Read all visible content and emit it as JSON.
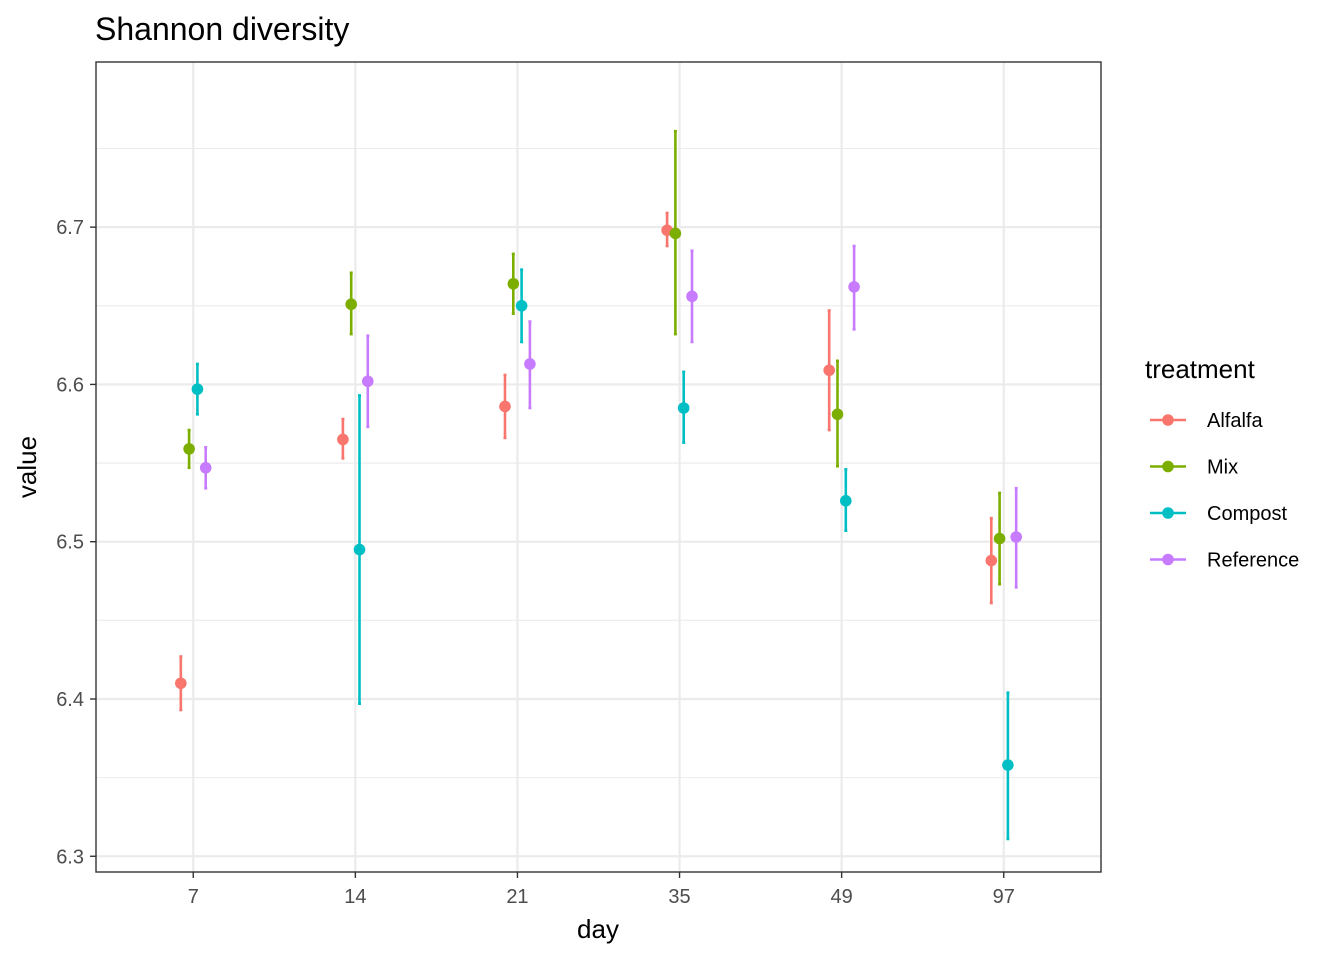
{
  "chart_data": {
    "type": "scatter",
    "title": "Shannon diversity",
    "xlabel": "day",
    "ylabel": "value",
    "categories": [
      "7",
      "14",
      "21",
      "35",
      "49",
      "97"
    ],
    "ylim": [
      6.29,
      6.805
    ],
    "yticks": [
      "6.3",
      "6.4",
      "6.5",
      "6.6",
      "6.7"
    ],
    "grid": true,
    "legend": {
      "title": "treatment",
      "placement": "right"
    },
    "series": [
      {
        "name": "Alfalfa",
        "color": "#F8766D",
        "values": [
          6.41,
          6.565,
          6.586,
          6.698,
          6.609,
          6.488
        ],
        "lower": [
          6.393,
          6.553,
          6.566,
          6.688,
          6.571,
          6.461
        ],
        "upper": [
          6.427,
          6.578,
          6.606,
          6.709,
          6.647,
          6.515
        ]
      },
      {
        "name": "Mix",
        "color": "#7CAE00",
        "values": [
          6.559,
          6.651,
          6.664,
          6.696,
          6.581,
          6.502
        ],
        "lower": [
          6.547,
          6.632,
          6.645,
          6.632,
          6.548,
          6.473
        ],
        "upper": [
          6.571,
          6.671,
          6.683,
          6.761,
          6.615,
          6.531
        ]
      },
      {
        "name": "Compost",
        "color": "#00BFC4",
        "values": [
          6.597,
          6.495,
          6.65,
          6.585,
          6.526,
          6.358
        ],
        "lower": [
          6.581,
          6.397,
          6.627,
          6.563,
          6.507,
          6.311
        ],
        "upper": [
          6.613,
          6.593,
          6.673,
          6.608,
          6.546,
          6.404
        ]
      },
      {
        "name": "Reference",
        "color": "#C77CFF",
        "values": [
          6.547,
          6.602,
          6.613,
          6.656,
          6.662,
          6.503
        ],
        "lower": [
          6.534,
          6.573,
          6.585,
          6.627,
          6.635,
          6.471
        ],
        "upper": [
          6.56,
          6.631,
          6.64,
          6.685,
          6.688,
          6.534
        ]
      }
    ]
  }
}
